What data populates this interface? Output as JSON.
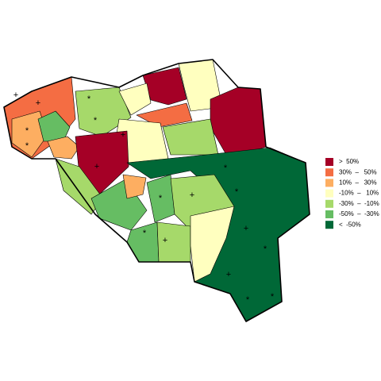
{
  "legend": {
    "items": [
      {
        "label": ">  50%",
        "color": "#a50026"
      },
      {
        "label": "30%  –   50%",
        "color": "#f46d43"
      },
      {
        "label": "10%  –   30%",
        "color": "#fdae61"
      },
      {
        "label": "-10%  –   10%",
        "color": "#ffffbf"
      },
      {
        "label": "-30%  –  -10%",
        "color": "#a6d96a"
      },
      {
        "label": "-50%  –  -30%",
        "color": "#66bd63"
      },
      {
        "label": "<  -50%",
        "color": "#006837"
      }
    ]
  }
}
